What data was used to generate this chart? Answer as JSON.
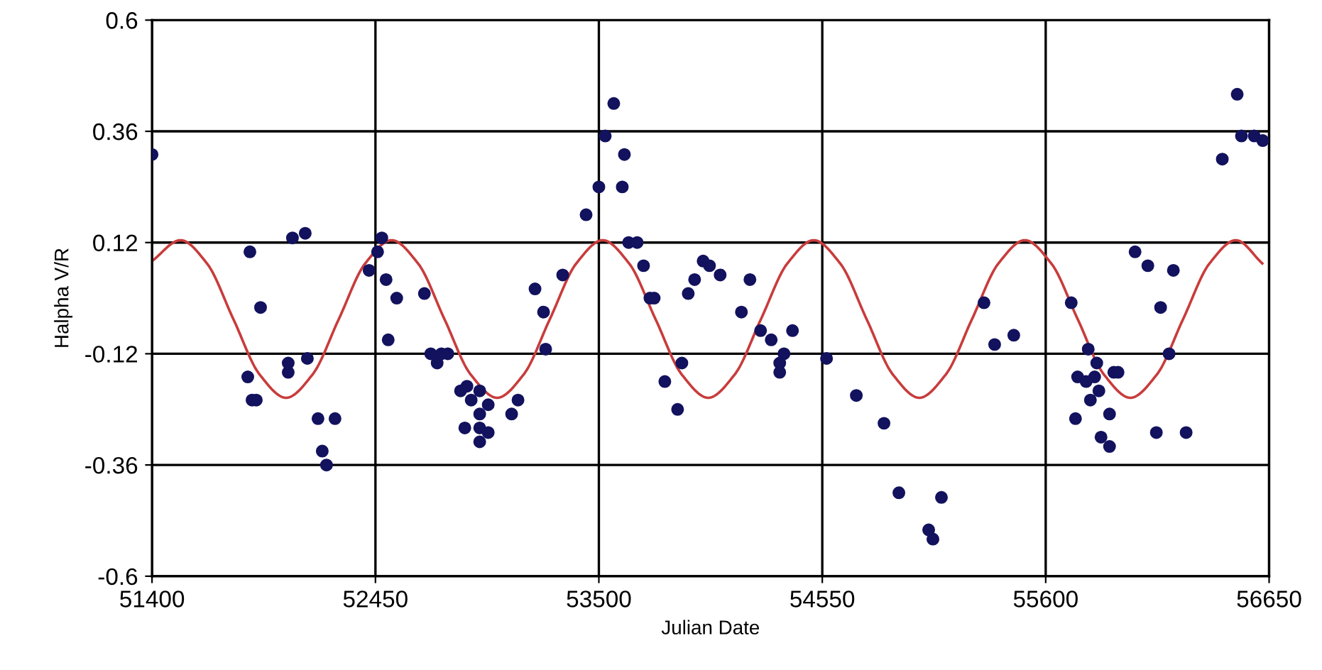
{
  "chart_data": {
    "type": "scatter",
    "xlabel": "Julian Date",
    "ylabel": "Halpha V/R",
    "xlim": [
      51400,
      56650
    ],
    "xticks": [
      51400,
      52450,
      53500,
      54550,
      55600,
      56650
    ],
    "ylim": [
      -0.6,
      0.6
    ],
    "yticks": [
      -0.6,
      -0.36,
      -0.12,
      0.12,
      0.36,
      0.6
    ],
    "grid": true,
    "series": [
      {
        "marker": "circle",
        "color": "#12125e",
        "x": [
          51400,
          51860,
          51910,
          51850,
          51870,
          51890,
          52040,
          52040,
          52060,
          52120,
          52130,
          52180,
          52260,
          52200,
          52220,
          52420,
          52460,
          52480,
          52500,
          52550,
          52510,
          52680,
          52710,
          52740,
          52760,
          52790,
          52850,
          52880,
          52900,
          52940,
          52980,
          52940,
          52940,
          52940,
          52870,
          52980,
          53090,
          53120,
          53200,
          53240,
          53250,
          53330,
          53440,
          53500,
          53530,
          53570,
          53620,
          53610,
          53640,
          53680,
          53710,
          53740,
          53760,
          53810,
          53870,
          53890,
          53920,
          53950,
          53990,
          54020,
          54070,
          54170,
          54210,
          54260,
          54310,
          54370,
          54350,
          54350,
          54410,
          54570,
          54710,
          54840,
          54910,
          55110,
          55050,
          55070,
          55310,
          55360,
          55450,
          55720,
          55800,
          55840,
          55750,
          55790,
          55830,
          55850,
          55810,
          55740,
          55900,
          55920,
          55940,
          55860,
          55900,
          56020,
          56080,
          56200,
          56140,
          56180,
          56120,
          56260,
          56430,
          56500,
          56520,
          56580,
          56620
        ],
        "values": [
          0.31,
          0.1,
          -0.02,
          -0.17,
          -0.22,
          -0.22,
          -0.14,
          -0.16,
          0.13,
          0.14,
          -0.13,
          -0.26,
          -0.26,
          -0.33,
          -0.36,
          0.06,
          0.1,
          0.13,
          0.04,
          0.0,
          -0.09,
          0.01,
          -0.12,
          -0.14,
          -0.12,
          -0.12,
          -0.2,
          -0.19,
          -0.22,
          -0.2,
          -0.23,
          -0.25,
          -0.28,
          -0.31,
          -0.28,
          -0.29,
          -0.25,
          -0.22,
          0.02,
          -0.03,
          -0.11,
          0.05,
          0.18,
          0.24,
          0.35,
          0.42,
          0.31,
          0.24,
          0.12,
          0.12,
          0.07,
          0.0,
          0.0,
          -0.18,
          -0.24,
          -0.14,
          0.01,
          0.04,
          0.08,
          0.07,
          0.05,
          -0.03,
          0.04,
          -0.07,
          -0.09,
          -0.12,
          -0.14,
          -0.16,
          -0.07,
          -0.13,
          -0.21,
          -0.27,
          -0.42,
          -0.43,
          -0.5,
          -0.52,
          -0.01,
          -0.1,
          -0.08,
          -0.01,
          -0.11,
          -0.14,
          -0.17,
          -0.18,
          -0.17,
          -0.2,
          -0.22,
          -0.26,
          -0.25,
          -0.16,
          -0.16,
          -0.3,
          -0.32,
          0.1,
          0.07,
          0.06,
          -0.02,
          -0.12,
          -0.29,
          -0.29,
          0.3,
          0.44,
          0.35,
          0.35,
          0.34
        ]
      },
      {
        "type": "line",
        "marker": "none",
        "line_style": "solid",
        "color": "#c83c3c",
        "x": [
          51400,
          51534,
          51658,
          51782,
          51906,
          52030,
          52154,
          52278,
          52402,
          52526,
          52650,
          52774,
          52898,
          53022,
          53146,
          53270,
          53394,
          53518,
          53642,
          53766,
          53890,
          54014,
          54138,
          54262,
          54386,
          54510,
          54634,
          54758,
          54882,
          55006,
          55130,
          55254,
          55378,
          55502,
          55626,
          55750,
          55874,
          55998,
          56122,
          56246,
          56370,
          56494,
          56618
        ],
        "values": [
          0.08,
          0.125,
          0.075,
          -0.045,
          -0.165,
          -0.215,
          -0.165,
          -0.045,
          0.075,
          0.125,
          0.075,
          -0.045,
          -0.165,
          -0.215,
          -0.165,
          -0.045,
          0.075,
          0.125,
          0.075,
          -0.045,
          -0.165,
          -0.215,
          -0.165,
          -0.045,
          0.075,
          0.125,
          0.075,
          -0.045,
          -0.165,
          -0.215,
          -0.165,
          -0.045,
          0.075,
          0.125,
          0.075,
          -0.045,
          -0.165,
          -0.215,
          -0.165,
          -0.045,
          0.075,
          0.125,
          0.075
        ]
      }
    ]
  }
}
